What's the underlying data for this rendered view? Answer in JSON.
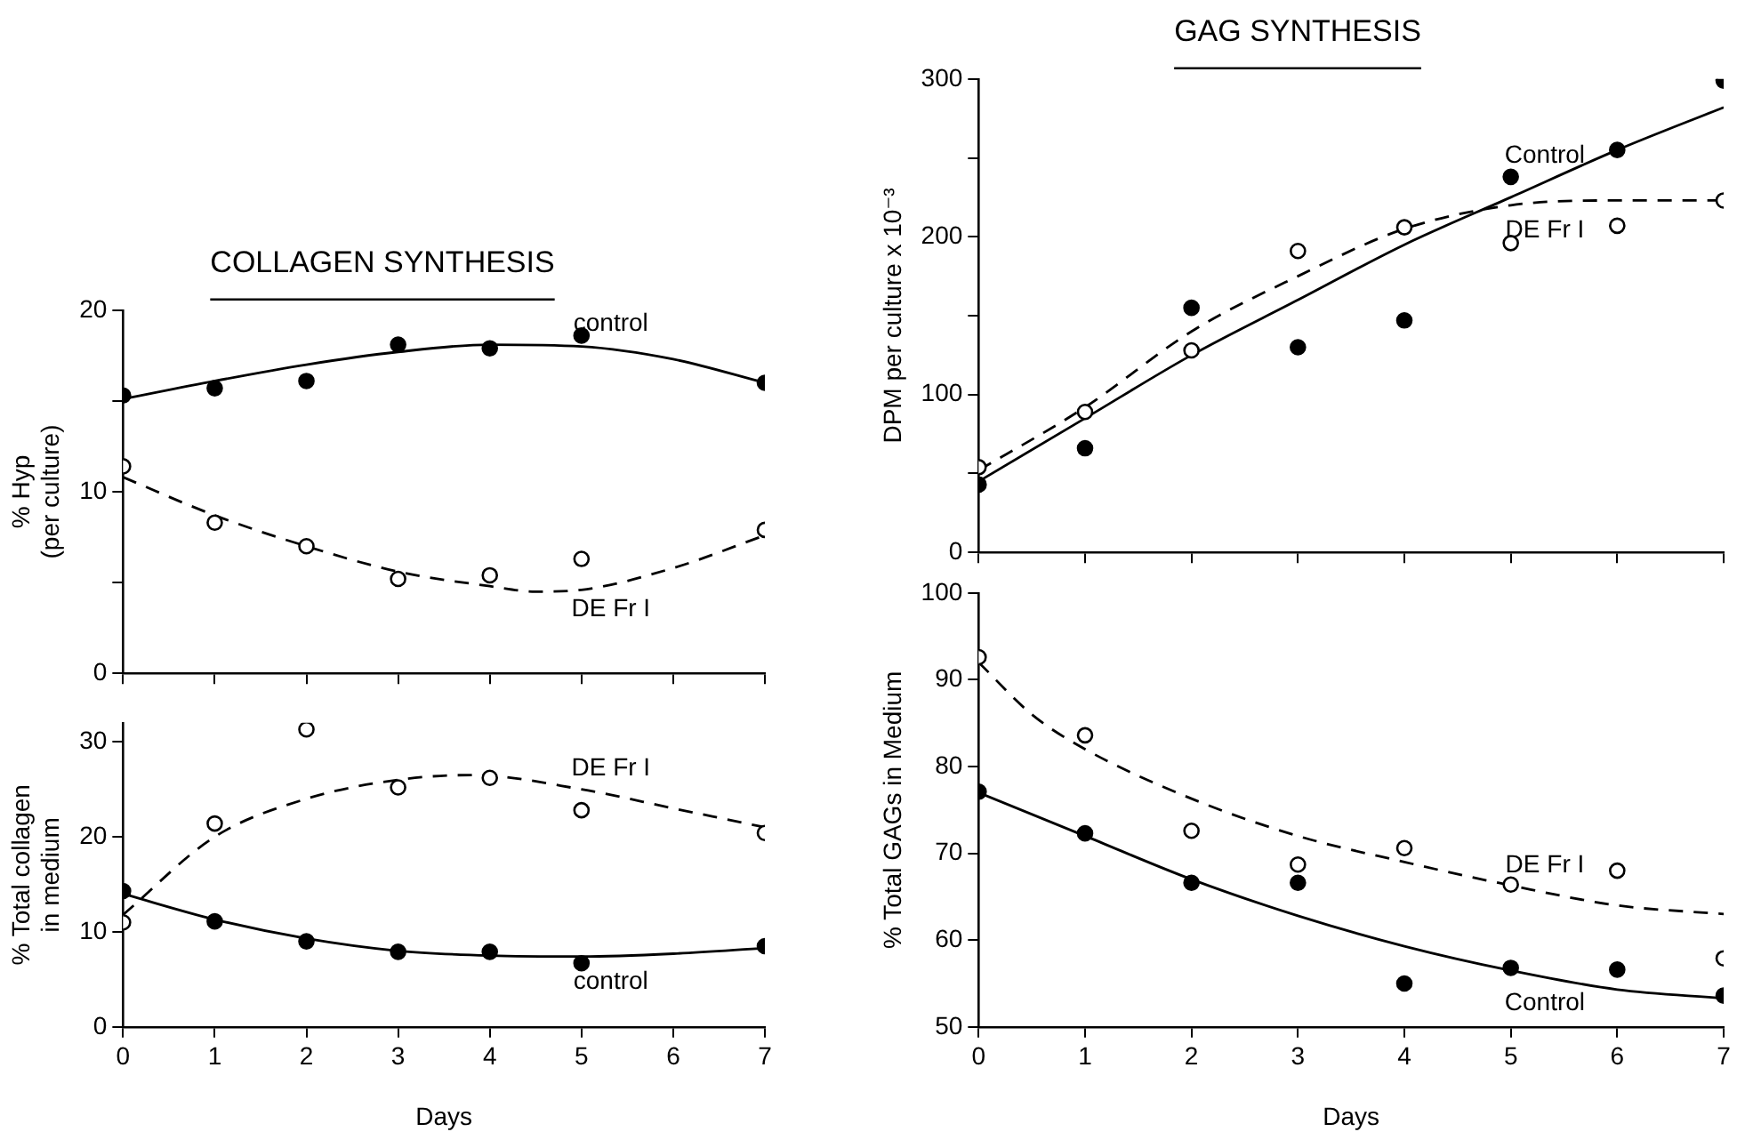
{
  "chart_data": [
    {
      "type": "scatter",
      "title": "COLLAGEN SYNTHESIS",
      "ylabel": "% Hyp\n(per culture)",
      "xlim": [
        0,
        7
      ],
      "xticks": [
        0,
        1,
        2,
        3,
        4,
        5,
        6,
        7
      ],
      "ylim": [
        0,
        20
      ],
      "yticks": [
        0,
        {
          "value": 5,
          "label": null
        },
        10,
        {
          "value": 15,
          "label": null
        },
        20
      ],
      "tick_labels": "y",
      "grid": false,
      "legend": false,
      "series": [
        {
          "name": "control",
          "type": "scatter",
          "color": "#000000",
          "x": [
            0,
            1,
            2,
            3,
            4,
            5,
            7
          ],
          "values": [
            15.3,
            15.7,
            16.1,
            18.1,
            17.9,
            18.6,
            16.0
          ]
        },
        {
          "type": "line",
          "line_style": "solid",
          "color": "#000000",
          "x": [
            0,
            1,
            2,
            3,
            4,
            5,
            6,
            7
          ],
          "values": [
            15.1,
            16.1,
            17.0,
            17.7,
            18.1,
            18.0,
            17.3,
            16.0
          ]
        },
        {
          "name": "DE Fr I",
          "type": "scatter",
          "color": "#000000",
          "x": [
            0,
            1,
            2,
            3,
            4,
            5,
            7
          ],
          "values": [
            11.4,
            8.3,
            7.0,
            5.2,
            5.4,
            6.3,
            7.9
          ]
        },
        {
          "type": "line",
          "line_style": "dashed",
          "color": "#000000",
          "x": [
            0,
            1,
            2,
            3,
            4,
            4.5,
            5,
            6,
            7
          ],
          "values": [
            10.8,
            8.7,
            7.0,
            5.6,
            4.8,
            4.5,
            4.6,
            5.8,
            7.6
          ]
        }
      ]
    },
    {
      "type": "scatter",
      "xlabel": "Days",
      "ylabel": "% Total collagen\nin medium",
      "xlim": [
        0,
        7
      ],
      "xticks": [
        0,
        1,
        2,
        3,
        4,
        5,
        6,
        7
      ],
      "ylim": [
        0,
        32
      ],
      "yticks": [
        0,
        10,
        20,
        30
      ],
      "grid": false,
      "legend": false,
      "series": [
        {
          "name": "control",
          "type": "scatter",
          "color": "#000000",
          "x": [
            0,
            1,
            2,
            3,
            4,
            5,
            7
          ],
          "values": [
            14.3,
            11.1,
            9.0,
            7.9,
            7.9,
            6.7,
            8.5
          ]
        },
        {
          "type": "line",
          "line_style": "solid",
          "color": "#000000",
          "x": [
            0,
            1,
            2,
            3,
            4,
            5,
            6,
            7
          ],
          "values": [
            14.0,
            11.3,
            9.3,
            8.0,
            7.5,
            7.4,
            7.7,
            8.3
          ]
        },
        {
          "name": "DE Fr I",
          "type": "scatter",
          "color": "#000000",
          "x": [
            0,
            1,
            2,
            3,
            4,
            5,
            7
          ],
          "values": [
            11.0,
            21.4,
            31.3,
            25.2,
            26.2,
            22.8,
            20.4
          ]
        },
        {
          "type": "line",
          "line_style": "dashed",
          "color": "#000000",
          "x": [
            0,
            1,
            2,
            3,
            3.8,
            5,
            6,
            7
          ],
          "values": [
            11.8,
            20.0,
            24.0,
            26.0,
            26.5,
            25.0,
            23.0,
            21.0
          ]
        }
      ]
    },
    {
      "type": "scatter",
      "title": "GAG SYNTHESIS",
      "ylabel": "DPM per culture x 10⁻³",
      "xlim": [
        0,
        7
      ],
      "xticks": [
        0,
        1,
        2,
        3,
        4,
        5,
        6,
        7
      ],
      "ylim": [
        0,
        300
      ],
      "yticks": [
        0,
        {
          "value": 50,
          "label": null
        },
        100,
        {
          "value": 150,
          "label": null
        },
        200,
        {
          "value": 250,
          "label": null
        },
        300
      ],
      "tick_labels": "y",
      "grid": false,
      "legend": false,
      "series": [
        {
          "name": "Control",
          "type": "scatter",
          "color": "#000000",
          "x": [
            0,
            1,
            2,
            3,
            4,
            5,
            6,
            7
          ],
          "values": [
            43,
            66,
            155,
            130,
            147,
            238,
            255,
            299
          ]
        },
        {
          "type": "line",
          "line_style": "solid",
          "color": "#000000",
          "x": [
            0,
            1,
            2,
            3,
            4,
            5,
            6,
            7
          ],
          "values": [
            45,
            85,
            125,
            160,
            195,
            225,
            255,
            282
          ]
        },
        {
          "name": "DE Fr I",
          "type": "scatter",
          "color": "#000000",
          "x": [
            0,
            1,
            2,
            3,
            4,
            5,
            6,
            7
          ],
          "values": [
            54,
            89,
            128,
            191,
            206,
            196,
            207,
            223
          ]
        },
        {
          "type": "line",
          "line_style": "dashed",
          "color": "#000000",
          "x": [
            0,
            1,
            2,
            3,
            4,
            5,
            6,
            7
          ],
          "values": [
            52,
            92,
            140,
            175,
            205,
            220,
            223,
            223
          ]
        }
      ]
    },
    {
      "type": "scatter",
      "xlabel": "Days",
      "ylabel": "% Total GAGs in Medium",
      "xlim": [
        0,
        7
      ],
      "xticks": [
        0,
        1,
        2,
        3,
        4,
        5,
        6,
        7
      ],
      "ylim": [
        50,
        100
      ],
      "yticks": [
        50,
        60,
        70,
        80,
        90,
        100
      ],
      "grid": false,
      "legend": false,
      "series": [
        {
          "name": "Control",
          "type": "scatter",
          "color": "#000000",
          "x": [
            0,
            1,
            2,
            3,
            4,
            5,
            6,
            7
          ],
          "values": [
            77.1,
            72.3,
            66.6,
            66.6,
            55.0,
            56.8,
            56.6,
            53.6
          ]
        },
        {
          "type": "line",
          "line_style": "solid",
          "color": "#000000",
          "x": [
            0,
            1,
            2,
            3,
            4,
            5,
            6,
            7
          ],
          "values": [
            77,
            72,
            67,
            62.8,
            59.3,
            56.5,
            54.3,
            53.3
          ]
        },
        {
          "name": "DE Fr I",
          "type": "scatter",
          "color": "#000000",
          "x": [
            0,
            1,
            2,
            3,
            4,
            5,
            6,
            7
          ],
          "values": [
            92.6,
            83.6,
            72.6,
            68.7,
            70.6,
            66.4,
            68.0,
            57.9
          ]
        },
        {
          "type": "line",
          "line_style": "dashed",
          "color": "#000000",
          "x": [
            0,
            0.5,
            1,
            2,
            3,
            4,
            5,
            6,
            7
          ],
          "values": [
            92,
            86,
            82,
            76.3,
            72,
            69,
            66.3,
            64,
            63
          ]
        }
      ]
    }
  ]
}
